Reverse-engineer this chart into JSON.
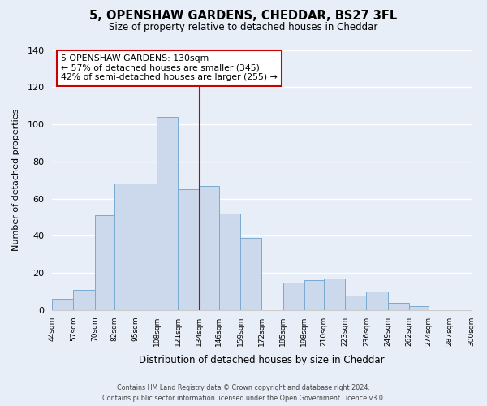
{
  "title": "5, OPENSHAW GARDENS, CHEDDAR, BS27 3FL",
  "subtitle": "Size of property relative to detached houses in Cheddar",
  "xlabel": "Distribution of detached houses by size in Cheddar",
  "ylabel": "Number of detached properties",
  "bar_color": "#ccd9ec",
  "bar_edge_color": "#7aaad0",
  "background_color": "#e8eef8",
  "grid_color": "#ffffff",
  "bin_edges": [
    44,
    57,
    70,
    82,
    95,
    108,
    121,
    134,
    146,
    159,
    172,
    185,
    198,
    210,
    223,
    236,
    249,
    262,
    274,
    287,
    300
  ],
  "bin_labels": [
    "44sqm",
    "57sqm",
    "70sqm",
    "82sqm",
    "95sqm",
    "108sqm",
    "121sqm",
    "134sqm",
    "146sqm",
    "159sqm",
    "172sqm",
    "185sqm",
    "198sqm",
    "210sqm",
    "223sqm",
    "236sqm",
    "249sqm",
    "262sqm",
    "274sqm",
    "287sqm",
    "300sqm"
  ],
  "counts": [
    6,
    11,
    51,
    68,
    68,
    104,
    65,
    67,
    52,
    39,
    0,
    15,
    16,
    17,
    8,
    10,
    4,
    2,
    0,
    0
  ],
  "vline_x": 134,
  "annotation_title": "5 OPENSHAW GARDENS: 130sqm",
  "annotation_line1": "← 57% of detached houses are smaller (345)",
  "annotation_line2": "42% of semi-detached houses are larger (255) →",
  "annotation_box_color": "#ffffff",
  "annotation_border_color": "#cc0000",
  "vline_color": "#cc0000",
  "ylim": [
    0,
    140
  ],
  "yticks": [
    0,
    20,
    40,
    60,
    80,
    100,
    120,
    140
  ],
  "footer_line1": "Contains HM Land Registry data © Crown copyright and database right 2024.",
  "footer_line2": "Contains public sector information licensed under the Open Government Licence v3.0."
}
